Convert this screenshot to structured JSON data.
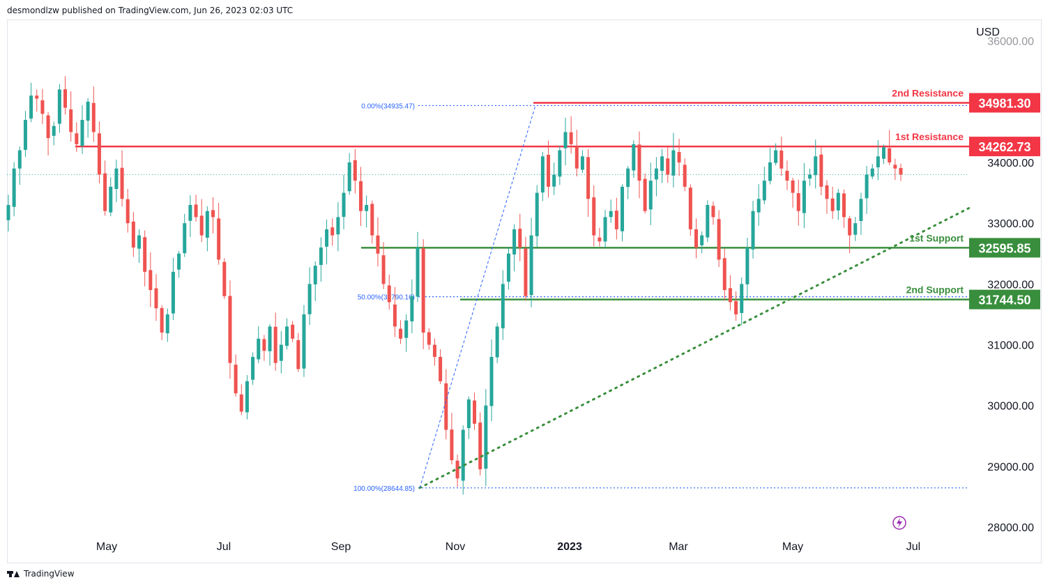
{
  "header": {
    "publisher_line": "desmondlzw published on TradingView.com, Jun 26, 2023 02:03 UTC"
  },
  "footer": {
    "brand": "TradingView"
  },
  "colors": {
    "up": "#26a69a",
    "down": "#ef5350",
    "resistance": "#f23645",
    "support": "#388e3c",
    "fib": "#2962ff"
  },
  "chart_data": {
    "type": "candlestick",
    "currency": "USD",
    "ylim": [
      27700,
      36100
    ],
    "y_ticks": [
      "28000.00",
      "29000.00",
      "30000.00",
      "31000.00",
      "32000.00",
      "33000.00",
      "34000.00"
    ],
    "y_tick_top_partial": "36000.00",
    "x_ticks": [
      "May",
      "Jul",
      "Sep",
      "Nov",
      "2023",
      "Mar",
      "May",
      "Jul"
    ],
    "levels": [
      {
        "label": "2nd Resistance",
        "value": "34981.30",
        "num": 34981.3,
        "kind": "resistance"
      },
      {
        "label": "1st Resistance",
        "value": "34262.73",
        "num": 34262.73,
        "kind": "resistance"
      },
      {
        "label": "1st Support",
        "value": "32595.85",
        "num": 32595.85,
        "kind": "support"
      },
      {
        "label": "2nd Support",
        "value": "31744.50",
        "num": 31744.5,
        "kind": "support"
      }
    ],
    "fib": [
      {
        "label": "0.00%(34935.47)",
        "num": 34935.47
      },
      {
        "label": "50.00%(31790.16)",
        "num": 31790.16
      },
      {
        "label": "100.00%(28644.85)",
        "num": 28644.85
      }
    ],
    "last_price": 33800,
    "series_close": [
      33300,
      33900,
      34200,
      34700,
      35100,
      35050,
      34800,
      34400,
      34600,
      35200,
      34900,
      34500,
      34300,
      34700,
      35000,
      34500,
      33800,
      33200,
      33600,
      33900,
      33400,
      33000,
      32600,
      32800,
      32200,
      31900,
      31600,
      31200,
      31500,
      32200,
      32500,
      33000,
      33300,
      33100,
      32800,
      33200,
      33100,
      32400,
      31800,
      30700,
      30200,
      29900,
      30400,
      30800,
      31100,
      30900,
      31300,
      30700,
      31000,
      31300,
      31100,
      30600,
      31500,
      32000,
      32300,
      32600,
      32900,
      32800,
      33100,
      33500,
      34000,
      33700,
      33200,
      33300,
      32800,
      32500,
      32000,
      31700,
      31300,
      31100,
      31400,
      31800,
      32600,
      31200,
      31000,
      30800,
      30400,
      29600,
      29100,
      28800,
      29600,
      30100,
      29700,
      28950,
      30000,
      30800,
      31300,
      32000,
      32500,
      32900,
      32600,
      31800,
      32800,
      33500,
      34100,
      33600,
      33800,
      34200,
      34500,
      34300,
      33900,
      34100,
      33400,
      32800,
      32700,
      33100,
      33200,
      32900,
      33600,
      33900,
      34300,
      33700,
      33200,
      33700,
      33900,
      34100,
      33800,
      34200,
      34000,
      33600,
      32900,
      32600,
      32800,
      33300,
      33100,
      32400,
      31900,
      31700,
      31500,
      32000,
      32600,
      33200,
      33400,
      33700,
      34000,
      34200,
      33900,
      33700,
      33500,
      33200,
      33700,
      33800,
      34100,
      33600,
      33400,
      33200,
      33500,
      33100,
      32800,
      33000,
      33400,
      33800,
      33900,
      34100,
      34250,
      34000,
      33900,
      33800
    ]
  }
}
